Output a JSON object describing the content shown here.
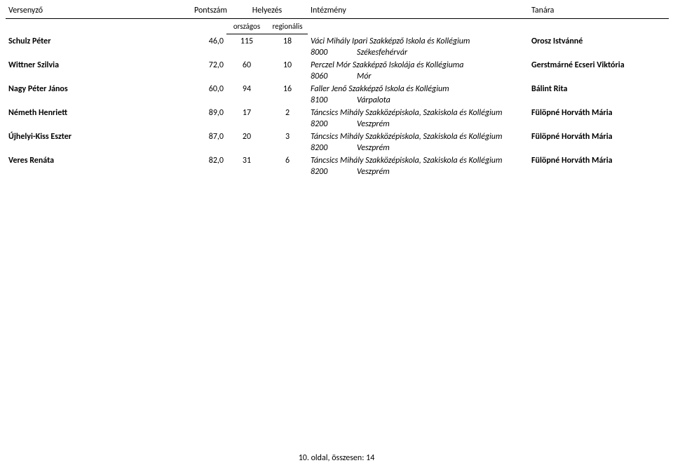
{
  "headers": {
    "name": "Versenyző",
    "score": "Pontszám",
    "placement": "Helyezés",
    "institution": "Intézmény",
    "teacher": "Tanára",
    "national": "országos",
    "regional": "regionális"
  },
  "rows": [
    {
      "name": "Schulz Péter",
      "score": "46,0",
      "national": "115",
      "regional": "18",
      "institution": "Váci Mihály Ipari Szakképző Iskola és Kollégium",
      "zip": "8000",
      "city": "Székesfehérvár",
      "teacher": "Orosz Istvánné"
    },
    {
      "name": "Wittner Szilvia",
      "score": "72,0",
      "national": "60",
      "regional": "10",
      "institution": "Perczel Mór Szakképző Iskolája és Kollégiuma",
      "zip": "8060",
      "city": "Mór",
      "teacher": "Gerstmárné Ecseri Viktória"
    },
    {
      "name": "Nagy Péter János",
      "score": "60,0",
      "national": "94",
      "regional": "16",
      "institution": "Faller Jenő Szakképző Iskola és Kollégium",
      "zip": "8100",
      "city": "Várpalota",
      "teacher": "Bálint Rita"
    },
    {
      "name": "Németh Henriett",
      "score": "89,0",
      "national": "17",
      "regional": "2",
      "institution": "Táncsics Mihály Szakközépiskola, Szakiskola és Kollégium",
      "zip": "8200",
      "city": "Veszprém",
      "teacher": "Fülöpné Horváth Mária"
    },
    {
      "name": "Újhelyi-Kiss Eszter",
      "score": "87,0",
      "national": "20",
      "regional": "3",
      "institution": "Táncsics Mihály Szakközépiskola, Szakiskola és Kollégium",
      "zip": "8200",
      "city": "Veszprém",
      "teacher": "Fülöpné Horváth Mária"
    },
    {
      "name": "Veres Renáta",
      "score": "82,0",
      "national": "31",
      "regional": "6",
      "institution": "Táncsics Mihály Szakközépiskola, Szakiskola és Kollégium",
      "zip": "8200",
      "city": "Veszprém",
      "teacher": "Fülöpné Horváth Mária"
    }
  ],
  "footer": "10. oldal, összesen: 14"
}
